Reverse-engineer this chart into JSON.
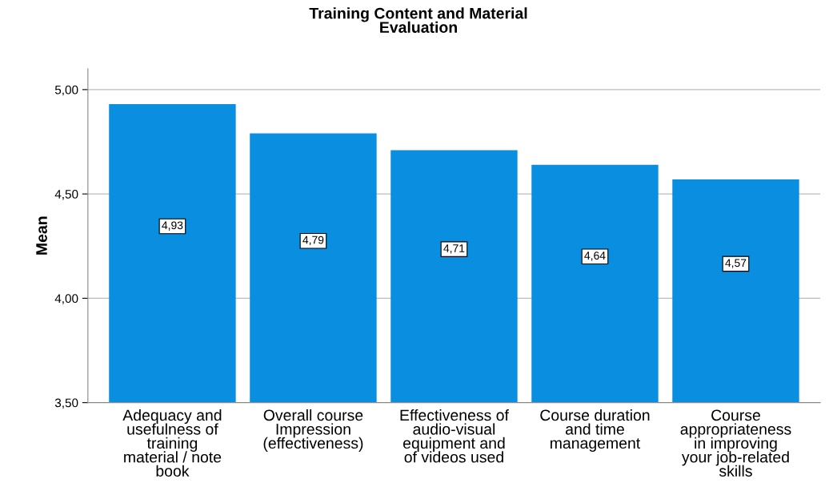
{
  "chart_data": {
    "type": "bar",
    "title": "Training Content and Material\nEvaluation",
    "ylabel": "Mean",
    "categories": [
      "Adequacy and\nusefulness of\ntraining\nmaterial / note\nbook",
      "Overall course\nImpression\n(effectiveness)",
      "Effectiveness of\naudio-visual\nequipment and\nof videos used",
      "Course duration\nand time\nmanagement",
      "Course\nappropriateness\nin improving\nyour job-related\nskills"
    ],
    "values": [
      4.93,
      4.79,
      4.71,
      4.64,
      4.57
    ],
    "value_labels": [
      "4,93",
      "4,79",
      "4,71",
      "4,64",
      "4,57"
    ],
    "color": "#0a8fe0",
    "ylim": [
      3.5,
      5.1
    ],
    "yticks": [
      {
        "value": 3.5,
        "label": "3,50"
      },
      {
        "value": 4.0,
        "label": "4,00"
      },
      {
        "value": 4.5,
        "label": "4,50"
      },
      {
        "value": 5.0,
        "label": "5,00"
      }
    ],
    "grid": "y",
    "legend": false
  }
}
